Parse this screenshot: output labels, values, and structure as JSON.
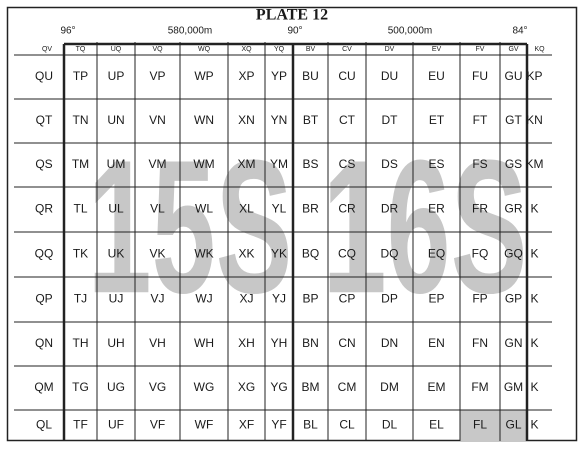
{
  "header": {
    "title": "PLATE 12",
    "labels": [
      "96°",
      "580,000m",
      "90°",
      "500,000m",
      "84°"
    ]
  },
  "grid": {
    "columns": [
      "QV",
      "TQ",
      "UQ",
      "VQ",
      "WQ",
      "XQ",
      "YQ",
      "BV",
      "CV",
      "DV",
      "EV",
      "FV",
      "GV",
      "KQ"
    ],
    "rows": [
      [
        "QU",
        "TP",
        "UP",
        "VP",
        "WP",
        "XP",
        "YP",
        "BU",
        "CU",
        "DU",
        "EU",
        "FU",
        "GU",
        "KP"
      ],
      [
        "QT",
        "TN",
        "UN",
        "VN",
        "WN",
        "XN",
        "YN",
        "BT",
        "CT",
        "DT",
        "ET",
        "FT",
        "GT",
        "KN"
      ],
      [
        "QS",
        "TM",
        "UM",
        "VM",
        "WM",
        "XM",
        "YM",
        "BS",
        "CS",
        "DS",
        "ES",
        "FS",
        "GS",
        "KM"
      ],
      [
        "QR",
        "TL",
        "UL",
        "VL",
        "WL",
        "XL",
        "YL",
        "BR",
        "CR",
        "DR",
        "ER",
        "FR",
        "GR",
        "K"
      ],
      [
        "QQ",
        "TK",
        "UK",
        "VK",
        "WK",
        "XK",
        "YK",
        "BQ",
        "CQ",
        "DQ",
        "EQ",
        "FQ",
        "GQ",
        "K"
      ],
      [
        "QP",
        "TJ",
        "UJ",
        "VJ",
        "WJ",
        "XJ",
        "YJ",
        "BP",
        "CP",
        "DP",
        "EP",
        "FP",
        "GP",
        "K"
      ],
      [
        "QN",
        "TH",
        "UH",
        "VH",
        "WH",
        "XH",
        "YH",
        "BN",
        "CN",
        "DN",
        "EN",
        "FN",
        "GN",
        "K"
      ],
      [
        "QM",
        "TG",
        "UG",
        "VG",
        "WG",
        "XG",
        "YG",
        "BM",
        "CM",
        "DM",
        "EM",
        "FM",
        "GM",
        "K"
      ],
      [
        "QL",
        "TF",
        "UF",
        "VF",
        "WF",
        "XF",
        "YF",
        "BL",
        "CL",
        "DL",
        "EL",
        "FL",
        "GL",
        "K"
      ]
    ]
  },
  "zones": [
    "15S",
    "16S"
  ]
}
